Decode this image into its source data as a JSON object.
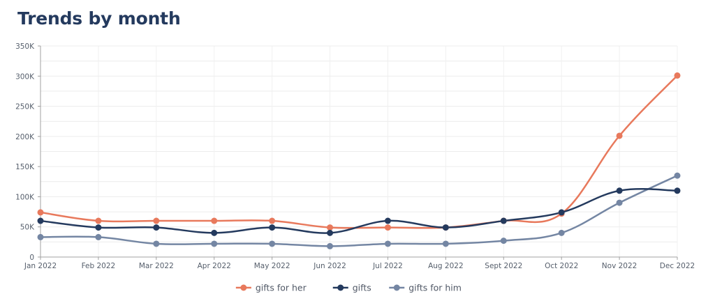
{
  "chart_data": {
    "type": "line",
    "title": "Trends by month",
    "xlabel": "",
    "ylabel": "",
    "categories": [
      "Jan 2022",
      "Feb 2022",
      "Mar 2022",
      "Apr 2022",
      "May 2022",
      "Jun 2022",
      "Jul 2022",
      "Aug 2022",
      "Sept 2022",
      "Oct 2022",
      "Nov 2022",
      "Dec 2022"
    ],
    "ylim": [
      0,
      350000
    ],
    "y_ticks": [
      {
        "value": 0,
        "label": "0"
      },
      {
        "value": 50000,
        "label": "50K"
      },
      {
        "value": 100000,
        "label": "100K"
      },
      {
        "value": 150000,
        "label": "150K"
      },
      {
        "value": 200000,
        "label": "200K"
      },
      {
        "value": 250000,
        "label": "250K"
      },
      {
        "value": 300000,
        "label": "300K"
      },
      {
        "value": 350000,
        "label": "350K"
      }
    ],
    "grid": true,
    "legend_position": "bottom-center",
    "series": [
      {
        "name": "gifts for her",
        "color": "#e8795c",
        "values": [
          74000,
          60000,
          60000,
          60000,
          60000,
          49000,
          49000,
          49000,
          60000,
          72000,
          201000,
          301000
        ]
      },
      {
        "name": "gifts",
        "color": "#243a5e",
        "values": [
          60000,
          49000,
          49000,
          40000,
          49000,
          40000,
          60000,
          49000,
          60000,
          74000,
          110000,
          110000
        ]
      },
      {
        "name": "gifts for him",
        "color": "#7486a3",
        "values": [
          33000,
          33000,
          22000,
          22000,
          22000,
          18000,
          22000,
          22000,
          27000,
          40000,
          90000,
          135000
        ]
      }
    ]
  }
}
